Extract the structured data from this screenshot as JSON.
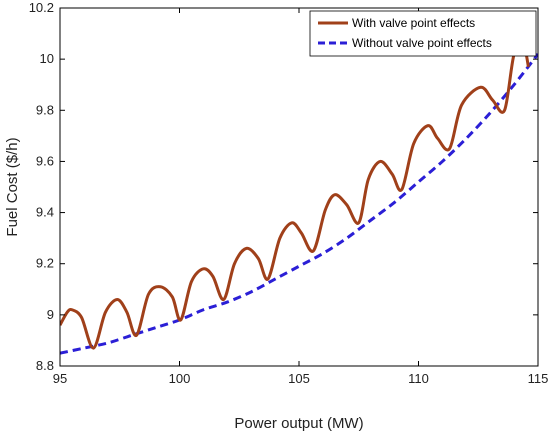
{
  "chart_data": {
    "type": "line",
    "xlabel": "Power output (MW)",
    "ylabel": "Fuel Cost ($/h)",
    "xlim": [
      95,
      115
    ],
    "ylim": [
      8.8,
      10.2
    ],
    "x_ticks": [
      95,
      100,
      105,
      110,
      115
    ],
    "y_ticks": [
      8.8,
      9,
      9.2,
      9.4,
      9.6,
      9.8,
      10,
      10.2
    ],
    "x_tick_labels": [
      "95",
      "100",
      "105",
      "110",
      "115"
    ],
    "y_tick_labels": [
      "8.8",
      "9",
      "9.2",
      "9.4",
      "9.6",
      "9.8",
      "10",
      "10.2"
    ],
    "grid": false,
    "legend_position": "top-right",
    "series": [
      {
        "name": "With valve point effects",
        "color": "#a0401a",
        "style": "solid",
        "x": [
          95,
          95.3,
          95.5,
          95.9,
          96.4,
          96.9,
          97.4,
          97.8,
          98.2,
          98.7,
          99.2,
          99.7,
          100.05,
          100.5,
          101.0,
          101.4,
          101.85,
          102.3,
          102.8,
          103.3,
          103.7,
          104.2,
          104.7,
          105.1,
          105.6,
          106.1,
          106.5,
          107.0,
          107.5,
          107.9,
          108.4,
          108.9,
          109.3,
          109.8,
          110.4,
          110.8,
          111.3,
          111.8,
          112.6,
          113.1,
          113.6,
          114.0,
          114.4,
          114.6
        ],
        "y": [
          8.96,
          9.01,
          9.02,
          8.99,
          8.87,
          9.01,
          9.06,
          9.01,
          8.92,
          9.08,
          9.11,
          9.07,
          8.98,
          9.13,
          9.18,
          9.15,
          9.06,
          9.2,
          9.26,
          9.22,
          9.14,
          9.3,
          9.36,
          9.32,
          9.25,
          9.41,
          9.47,
          9.43,
          9.36,
          9.53,
          9.6,
          9.55,
          9.49,
          9.67,
          9.74,
          9.69,
          9.65,
          9.82,
          9.89,
          9.84,
          9.8,
          10.02,
          10.05,
          9.97
        ]
      },
      {
        "name": "Without valve point effects",
        "color": "#2b1fd6",
        "style": "dashed",
        "x": [
          95,
          96,
          97,
          98,
          99,
          100,
          101,
          102,
          103,
          104,
          105,
          106,
          107,
          108,
          109,
          110,
          111,
          112,
          113,
          114,
          115
        ],
        "y": [
          8.85,
          8.87,
          8.89,
          8.92,
          8.95,
          8.98,
          9.02,
          9.05,
          9.09,
          9.14,
          9.19,
          9.24,
          9.3,
          9.37,
          9.44,
          9.52,
          9.6,
          9.69,
          9.79,
          9.9,
          10.02
        ]
      }
    ]
  }
}
